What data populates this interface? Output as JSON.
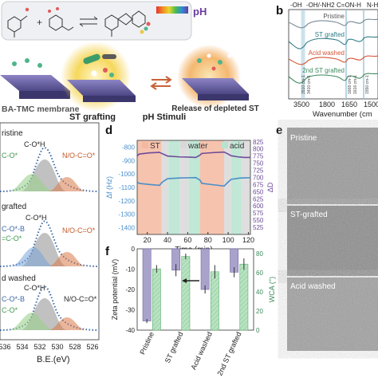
{
  "panel_labels": {
    "b": "b",
    "d": "d",
    "e": "e",
    "f": "f"
  },
  "panel_a": {
    "ph_label": "pH",
    "reaction_center_label": "ST grafting",
    "membrane_label": "BA-TMC membrane",
    "stimuli_label": "pH Stimuli",
    "release_label": "Release of depleted ST",
    "colors": {
      "membrane": "#6f68a8",
      "glow": "#f4d04a",
      "reaction_box": "#eef0f3"
    }
  },
  "panel_b": {
    "top_labels": [
      "-OH",
      "-OH/-NH2",
      "C=ON-H",
      "N-H"
    ],
    "series_labels": [
      "Pristine",
      "ST grafted",
      "Acid washed",
      "2nd ST grafted"
    ],
    "peak_labels": [
      "3410 cm-1",
      "3510 cm-1",
      "1668 cm-1",
      "1616 cm-1",
      "1550 cm-1"
    ],
    "ticks": [
      "3500",
      "1800",
      "1650",
      "1500"
    ],
    "xlabel": "Wavenumber (cm",
    "colors": [
      "#7a8a96",
      "#2f7b86",
      "#d45536",
      "#3d8a5d"
    ]
  },
  "panel_c": {
    "sections": [
      {
        "label": "ristine",
        "peaks": [
          "C-O*H",
          "C-O*",
          "N/O-C=O*"
        ]
      },
      {
        "label": "grafted",
        "peaks": [
          "C-O*H",
          "C-O*-B",
          "=C-O*",
          "N/O-C=O*"
        ]
      },
      {
        "label": "d washed",
        "peaks": [
          "C-O*H",
          "C-O*-B",
          "C-O*",
          "N/O-C=O*"
        ]
      }
    ],
    "x_ticks": [
      "536",
      "534",
      "532",
      "530",
      "528",
      "526"
    ],
    "xlabel": "B.E.(eV)"
  },
  "chart_data": [
    {
      "panel": "d",
      "type": "line",
      "xlabel": "Time (min)",
      "ylabel_left": "Δf (Hz)",
      "ylabel_right": "ΔD",
      "x_ticks": [
        20,
        40,
        60,
        80,
        100,
        120
      ],
      "y_left_ticks": [
        -1400,
        -1300,
        -1200,
        -1100,
        -1000,
        -900,
        -800
      ],
      "y_right_ticks": [
        525,
        550,
        575,
        600,
        625,
        650,
        675,
        700,
        725,
        750,
        775,
        800,
        825
      ],
      "xlim": [
        10,
        122
      ],
      "ylim_left": [
        -1450,
        -750
      ],
      "ylim_right": [
        500,
        830
      ],
      "legend": [
        "ST",
        "water",
        "acid"
      ],
      "bands": [
        {
          "type": "ST",
          "x0": 10,
          "x1": 34
        },
        {
          "type": "water",
          "x0": 34,
          "x1": 41
        },
        {
          "type": "acid",
          "x0": 41,
          "x1": 52
        },
        {
          "type": "water",
          "x0": 52,
          "x1": 61
        },
        {
          "type": "acid",
          "x0": 61,
          "x1": 72
        },
        {
          "type": "ST",
          "x0": 72,
          "x1": 96
        },
        {
          "type": "water",
          "x0": 96,
          "x1": 103
        },
        {
          "type": "acid",
          "x0": 103,
          "x1": 113
        },
        {
          "type": "water",
          "x0": 113,
          "x1": 122
        }
      ],
      "series": [
        {
          "name": "ΔD",
          "axis": "right",
          "x": [
            10,
            12,
            22,
            32,
            35,
            40,
            52,
            62,
            68,
            72,
            74,
            85,
            96,
            100,
            103,
            110,
            113,
            116,
            122
          ],
          "y": [
            775,
            782,
            786,
            788,
            783,
            775,
            772,
            771,
            770,
            778,
            784,
            787,
            789,
            782,
            776,
            772,
            771,
            770,
            770
          ]
        },
        {
          "name": "Δf",
          "axis": "left",
          "x": [
            10,
            12,
            22,
            32,
            35,
            40,
            52,
            62,
            68,
            72,
            74,
            85,
            96,
            100,
            103,
            110,
            113,
            116,
            122
          ],
          "y": [
            -1060,
            -1070,
            -1078,
            -1085,
            -1060,
            -1035,
            -1030,
            -1028,
            -1027,
            -1045,
            -1070,
            -1080,
            -1090,
            -1060,
            -1040,
            -1032,
            -1030,
            -1029,
            -1028
          ]
        }
      ],
      "colors": {
        "ST": "#f5b8a0",
        "water": "#d8d8d8",
        "acid": "#b6e3cf",
        "delta_f": "#4a8fc9",
        "delta_D": "#6e4c9a"
      }
    },
    {
      "panel": "f",
      "type": "bar",
      "categories": [
        "Pristine",
        "ST grafted",
        "Acid washed",
        "2nd ST grafted"
      ],
      "ylabel_left": "Zeta potential (mV)",
      "ylabel_right": "WCA (°)",
      "y_left_ticks": [
        0,
        -10,
        -20,
        -30,
        -40
      ],
      "y_right_ticks": [
        0,
        20,
        40,
        60,
        80
      ],
      "ylim_left": [
        -40,
        0
      ],
      "ylim_right": [
        0,
        85
      ],
      "series": [
        {
          "name": "Zeta potential",
          "axis": "left",
          "values": [
            -35.5,
            -10.5,
            -20,
            -11.5
          ],
          "errors": [
            1,
            3,
            2,
            2.5
          ]
        },
        {
          "name": "WCA",
          "axis": "right",
          "values": [
            64,
            77,
            61,
            69
          ],
          "errors": [
            4,
            3,
            7,
            6
          ]
        }
      ],
      "colors": {
        "zeta": "#a9a3cc",
        "wca": "#b8e3c2"
      }
    }
  ],
  "panel_e": {
    "captions": [
      "Pristine",
      "ST-grafted",
      "Acid washed"
    ]
  }
}
